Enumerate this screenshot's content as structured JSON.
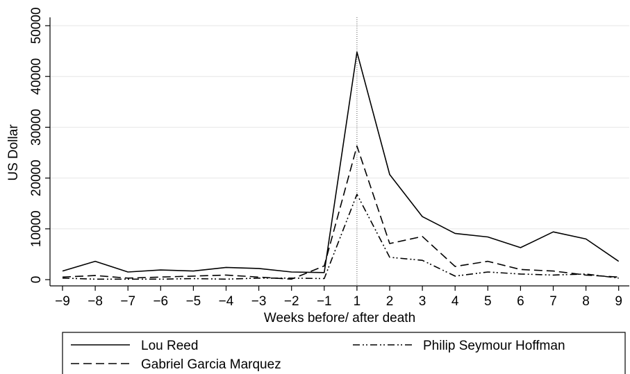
{
  "chart_data": {
    "type": "line",
    "xlabel": "Weeks before/ after death",
    "ylabel": "US Dollar",
    "x": [
      -9,
      -8,
      -7,
      -6,
      -5,
      -4,
      -3,
      -2,
      -1,
      1,
      2,
      3,
      4,
      5,
      6,
      7,
      8,
      9
    ],
    "x_tick_labels": [
      "−9",
      "−8",
      "−7",
      "−6",
      "−5",
      "−4",
      "−3",
      "−2",
      "−1",
      "1",
      "2",
      "3",
      "4",
      "5",
      "6",
      "7",
      "8",
      "9"
    ],
    "ylim": [
      0,
      50000
    ],
    "y_ticks": [
      0,
      10000,
      20000,
      30000,
      40000,
      50000
    ],
    "y_tick_labels": [
      "0",
      "10000",
      "20000",
      "30000",
      "40000",
      "50000"
    ],
    "reference_line_x": 1,
    "grid": true,
    "legend_position": "bottom",
    "series": [
      {
        "name": "Lou Reed",
        "style": "solid",
        "color": "#000000",
        "values": [
          1700,
          3600,
          1500,
          1900,
          1700,
          2400,
          2200,
          1500,
          1400,
          44800,
          20700,
          12400,
          9100,
          8400,
          6300,
          9400,
          8000,
          3600
        ]
      },
      {
        "name": "Philip Seymour Hoffman",
        "style": "dash-dot-dot",
        "color": "#000000",
        "values": [
          300,
          100,
          100,
          100,
          200,
          100,
          300,
          300,
          200,
          16800,
          4400,
          3800,
          700,
          1500,
          1100,
          900,
          1100,
          300
        ]
      },
      {
        "name": "Gabriel Garcia Marquez",
        "style": "dashed",
        "color": "#000000",
        "values": [
          500,
          800,
          300,
          500,
          700,
          900,
          500,
          100,
          2700,
          26300,
          7100,
          8500,
          2600,
          3600,
          2000,
          1700,
          900,
          500
        ]
      }
    ]
  }
}
